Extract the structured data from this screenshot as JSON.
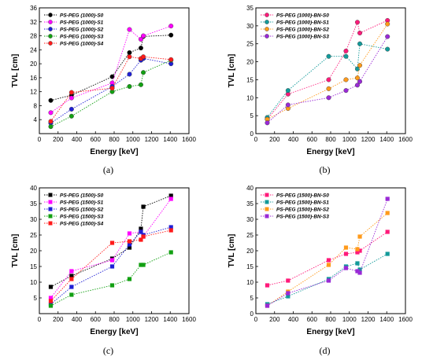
{
  "figure": {
    "captions": [
      "(a)",
      "(b)",
      "(c)",
      "(d)"
    ]
  },
  "chart_data": [
    {
      "type": "line",
      "panel": "(a)",
      "xlabel": "Energy [keV]",
      "ylabel": "TVL [cm]",
      "xlim": [
        0,
        1600
      ],
      "ylim": [
        0,
        36
      ],
      "xticks": [
        0,
        200,
        400,
        600,
        800,
        1000,
        1200,
        1400,
        1600
      ],
      "yticks": [
        4,
        8,
        12,
        16,
        20,
        24,
        28,
        32,
        36
      ],
      "legend_position": "top-left",
      "x": [
        122,
        344,
        779,
        964,
        1086,
        1112,
        1408
      ],
      "series": [
        {
          "name": "PS-PEG (1000)-S0",
          "color": "#000000",
          "values": [
            9.5,
            11.0,
            16.3,
            23.2,
            24.5,
            27.8,
            28.2
          ]
        },
        {
          "name": "PS-PEG (1000)-S1",
          "color": "#ff00ff",
          "values": [
            6.0,
            10.2,
            14.5,
            29.8,
            27.0,
            28.0,
            30.8
          ]
        },
        {
          "name": "PS-PEG (1000)-S2",
          "color": "#1f1fd6",
          "values": [
            3.0,
            7.0,
            13.5,
            17.0,
            21.0,
            21.5,
            20.0
          ]
        },
        {
          "name": "PS-PEG (1000)-S3",
          "color": "#12a012",
          "values": [
            2.0,
            5.0,
            12.0,
            13.5,
            14.0,
            17.5,
            21.0
          ]
        },
        {
          "name": "PS-PEG (1000)-S4",
          "color": "#ff1a1a",
          "values": [
            3.5,
            11.8,
            13.0,
            22.0,
            21.5,
            22.0,
            21.2
          ]
        }
      ]
    },
    {
      "type": "line",
      "panel": "(b)",
      "xlabel": "Energy [keV]",
      "ylabel": "TVL [cm]",
      "xlim": [
        0,
        1600
      ],
      "ylim": [
        0,
        35
      ],
      "xticks": [
        0,
        200,
        400,
        600,
        800,
        1000,
        1200,
        1400,
        1600
      ],
      "yticks": [
        0,
        5,
        10,
        15,
        20,
        25,
        30,
        35
      ],
      "legend_position": "top-left",
      "x": [
        122,
        344,
        779,
        964,
        1086,
        1112,
        1408
      ],
      "series": [
        {
          "name": "PS-PEG (1000)-BN-S0",
          "color": "#ff1a7a",
          "values": [
            4.0,
            11.0,
            15.0,
            23.0,
            31.0,
            28.0,
            31.5
          ]
        },
        {
          "name": "PS-PEG (1000)-BN-S1",
          "color": "#139a9a",
          "values": [
            4.5,
            12.0,
            21.5,
            21.5,
            18.0,
            25.0,
            23.5
          ]
        },
        {
          "name": "PS-PEG (1000)-BN-S2",
          "color": "#ff9a1a",
          "values": [
            4.0,
            7.0,
            12.5,
            15.0,
            15.5,
            19.0,
            30.5
          ]
        },
        {
          "name": "PS-PEG (1000)-BN-S3",
          "color": "#9a2ad6",
          "values": [
            3.0,
            8.0,
            10.0,
            12.0,
            13.5,
            14.5,
            27.0
          ]
        }
      ]
    },
    {
      "type": "line",
      "panel": "(c)",
      "xlabel": "Energy [keV]",
      "ylabel": "TVL [cm]",
      "xlim": [
        0,
        1600
      ],
      "ylim": [
        0,
        40
      ],
      "xticks": [
        0,
        200,
        400,
        600,
        800,
        1000,
        1200,
        1400,
        1600
      ],
      "yticks": [
        5,
        10,
        15,
        20,
        25,
        30,
        35,
        40
      ],
      "legend_position": "top-left",
      "x": [
        122,
        344,
        779,
        964,
        1086,
        1112,
        1408
      ],
      "series": [
        {
          "name": "PS-PEG (1500)-S0",
          "color": "#000000",
          "values": [
            8.5,
            12.0,
            17.5,
            21.0,
            27.0,
            34.0,
            37.5
          ]
        },
        {
          "name": "PS-PEG (1500)-S1",
          "color": "#ff00ff",
          "values": [
            5.0,
            13.5,
            17.0,
            25.5,
            26.0,
            24.5,
            36.5
          ]
        },
        {
          "name": "PS-PEG (1500)-S2",
          "color": "#1f1fd6",
          "values": [
            3.0,
            8.5,
            15.0,
            22.0,
            26.0,
            25.0,
            27.5
          ]
        },
        {
          "name": "PS-PEG (1500)-S3",
          "color": "#12a012",
          "values": [
            2.5,
            6.0,
            9.0,
            11.0,
            15.5,
            15.5,
            19.5
          ]
        },
        {
          "name": "PS-PEG (1500)-S4",
          "color": "#ff1a1a",
          "values": [
            4.0,
            11.0,
            22.5,
            23.0,
            23.5,
            24.5,
            26.5
          ]
        }
      ]
    },
    {
      "type": "line",
      "panel": "(d)",
      "xlabel": "Energy [keV]",
      "ylabel": "TVL [cm]",
      "xlim": [
        0,
        1600
      ],
      "ylim": [
        0,
        40
      ],
      "xticks": [
        0,
        200,
        400,
        600,
        800,
        1000,
        1200,
        1400,
        1600
      ],
      "yticks": [
        0,
        5,
        10,
        15,
        20,
        25,
        30,
        35,
        40
      ],
      "legend_position": "top-left",
      "x": [
        122,
        344,
        779,
        964,
        1086,
        1112,
        1408
      ],
      "series": [
        {
          "name": "PS-PEG (1500)-BN-S0",
          "color": "#ff1a7a",
          "values": [
            9.0,
            10.5,
            17.0,
            19.0,
            19.5,
            20.0,
            26.0
          ]
        },
        {
          "name": "PS-PEG (1500)-BN-S1",
          "color": "#139a9a",
          "values": [
            3.0,
            5.5,
            11.0,
            15.0,
            16.0,
            14.0,
            19.0
          ]
        },
        {
          "name": "PS-PEG (1500)-BN-S2",
          "color": "#ff9a1a",
          "values": [
            2.5,
            7.0,
            15.5,
            21.0,
            20.5,
            24.5,
            32.0
          ]
        },
        {
          "name": "PS-PEG (1500)-BN-S3",
          "color": "#9a2ad6",
          "values": [
            2.5,
            6.5,
            10.5,
            14.5,
            13.5,
            13.0,
            36.5
          ]
        }
      ]
    }
  ]
}
